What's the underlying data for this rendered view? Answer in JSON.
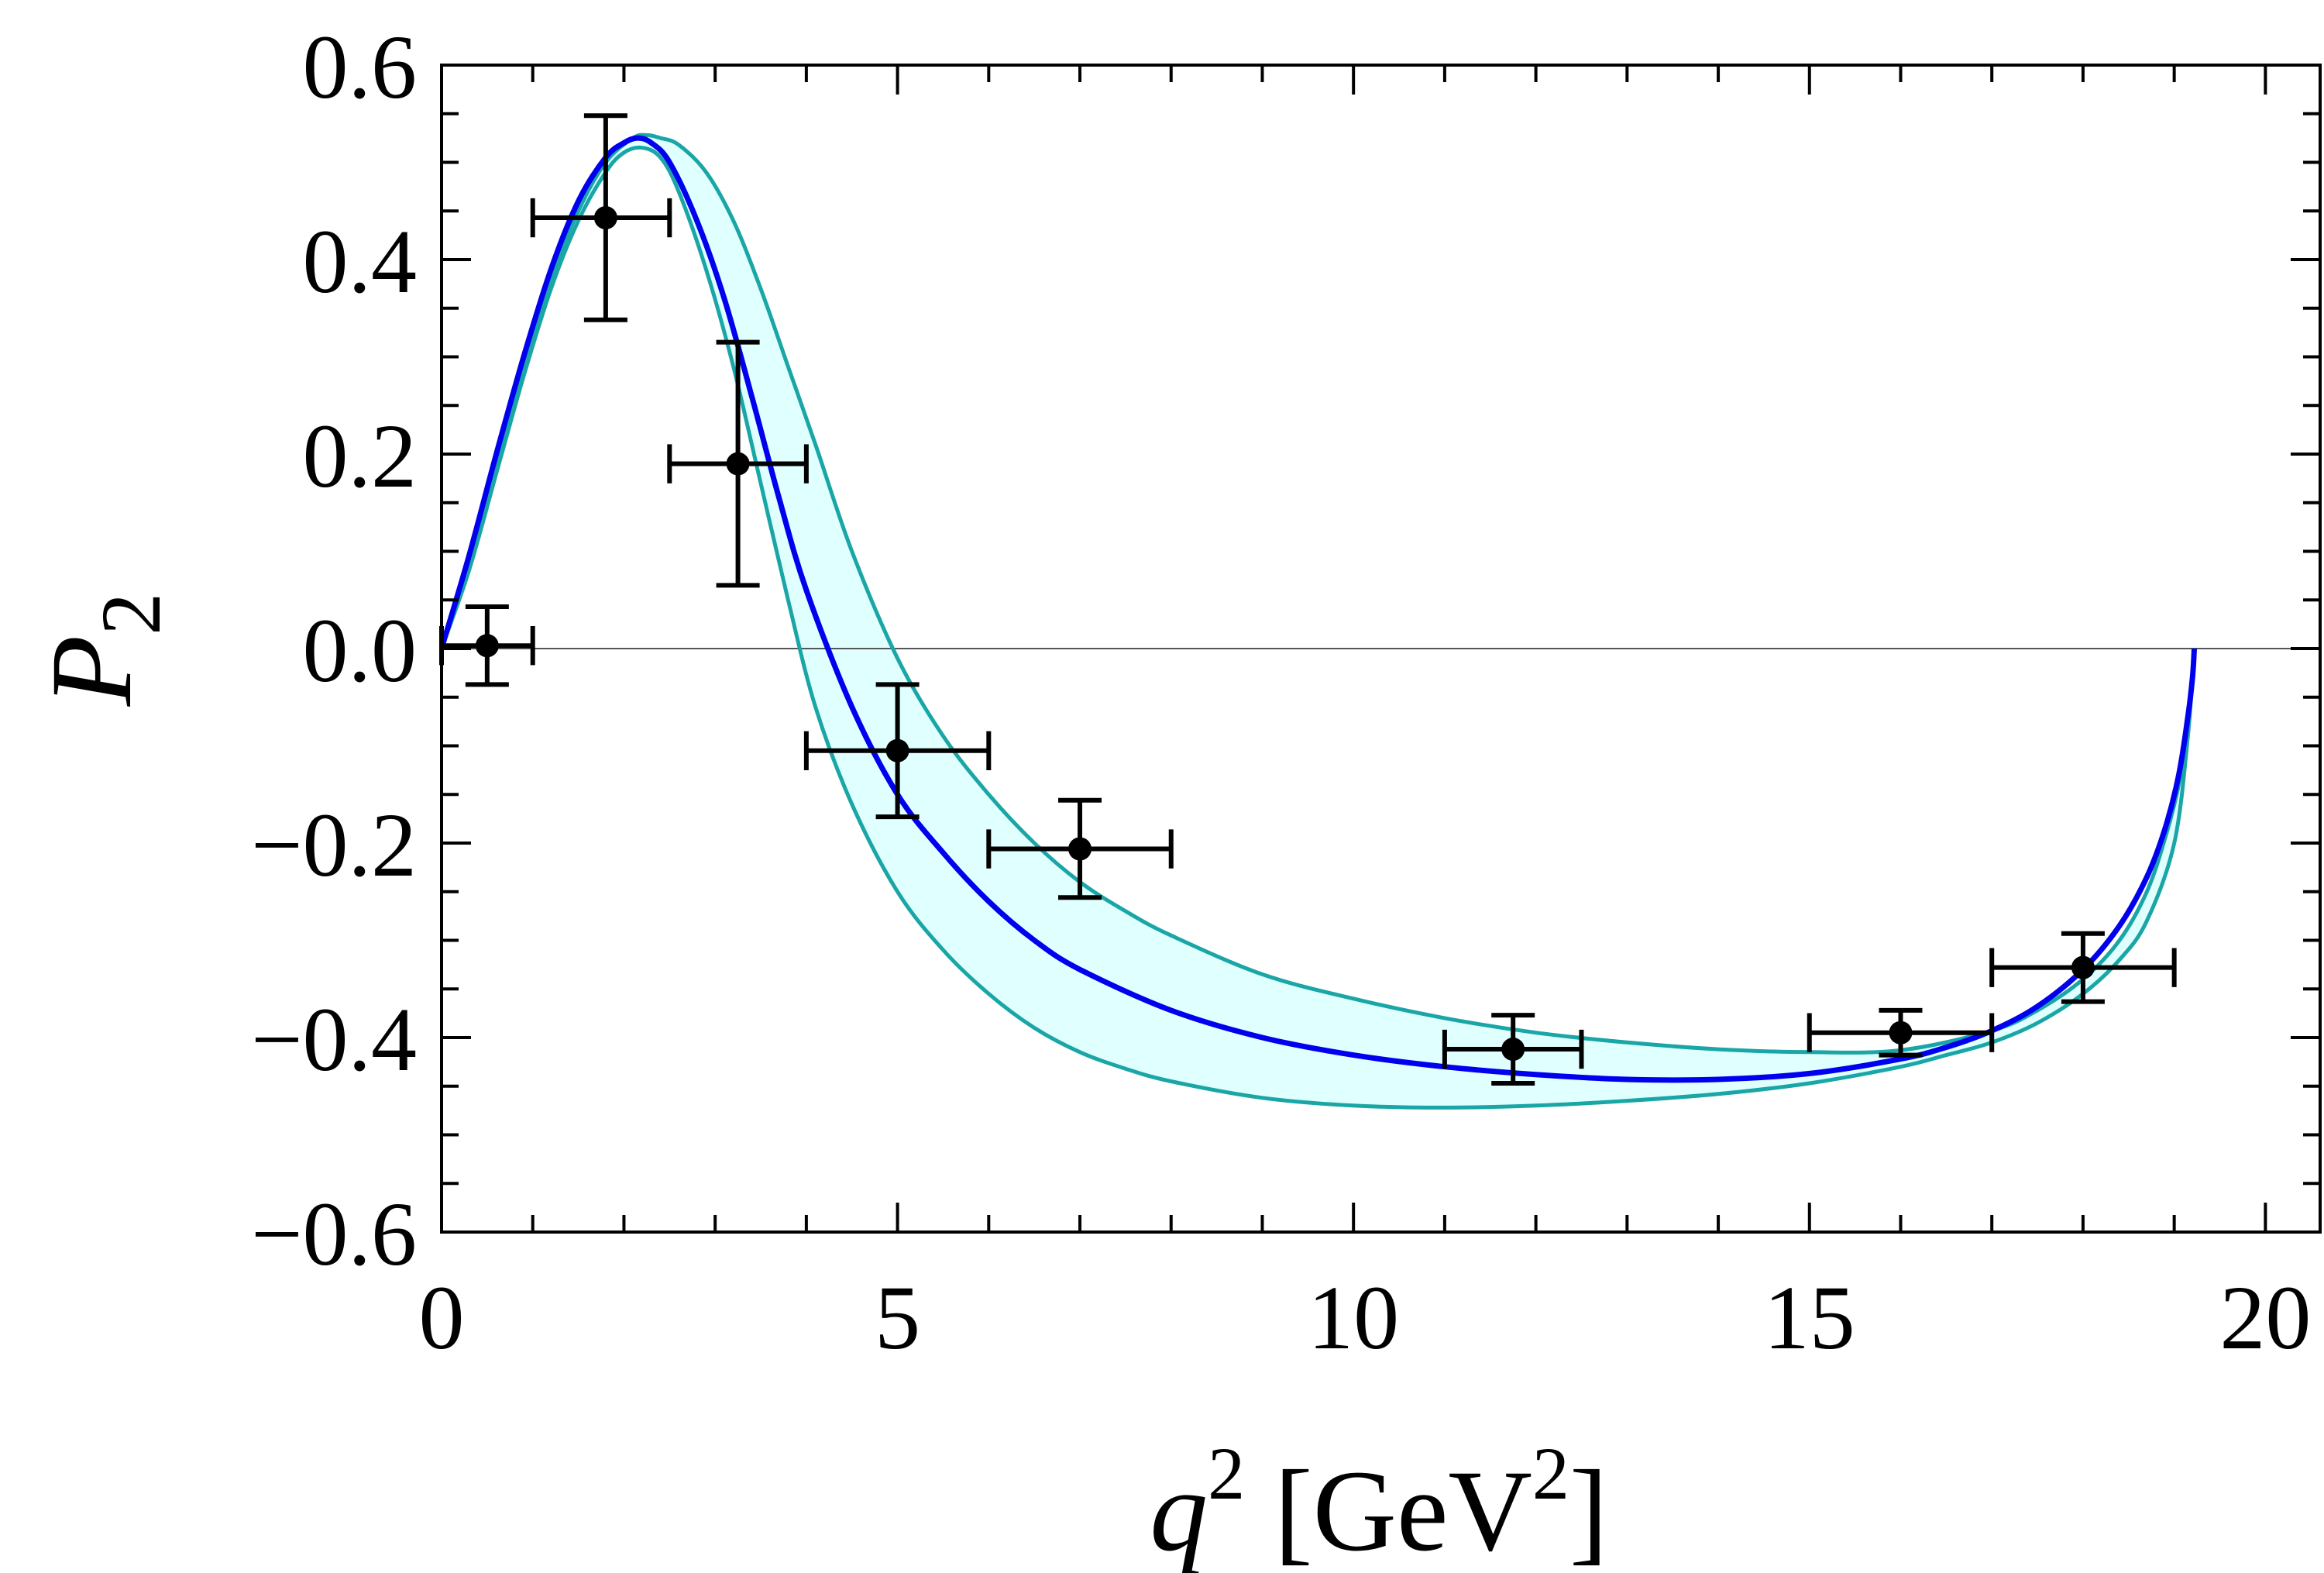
{
  "chart_data": {
    "type": "line",
    "title": "",
    "xlabel": {
      "main": "q",
      "sup": "2",
      "unit_open": " [GeV",
      "unit_sup": "2",
      "unit_close": "]"
    },
    "ylabel": {
      "main": "P",
      "sub": "2"
    },
    "xlim": [
      0,
      20.6
    ],
    "ylim": [
      -0.6,
      0.6
    ],
    "xticks": [
      0,
      5,
      10,
      15,
      20
    ],
    "xtick_labels": [
      "0",
      "5",
      "10",
      "15",
      "20"
    ],
    "yticks": [
      -0.6,
      -0.4,
      -0.2,
      0.0,
      0.2,
      0.4,
      0.6
    ],
    "ytick_labels": [
      "−0.6",
      "−0.4",
      "−0.2",
      "0.0",
      "0.2",
      "0.4",
      "0.6"
    ],
    "grid": false,
    "zero_line": true,
    "colors": {
      "central": "#0000ee",
      "band_edge": "#1aa6a6",
      "band_fill": "#e0ffff",
      "data": "#000000",
      "zero_line": "#555555"
    },
    "series": [
      {
        "name": "central",
        "x": [
          0.0,
          0.3,
          0.6,
          0.9,
          1.2,
          1.5,
          1.8,
          2.0,
          2.15,
          2.3,
          2.5,
          2.8,
          3.1,
          3.4,
          3.7,
          4.0,
          4.5,
          5.0,
          5.5,
          6.0,
          6.5,
          7.0,
          8.0,
          9.0,
          10.0,
          11.0,
          12.0,
          13.0,
          14.0,
          15.0,
          16.0,
          16.5,
          17.0,
          17.5,
          18.0,
          18.4,
          18.7,
          18.9,
          19.05,
          19.15,
          19.2,
          19.22
        ],
        "y": [
          0.0,
          0.095,
          0.2,
          0.3,
          0.39,
          0.46,
          0.505,
          0.52,
          0.525,
          0.52,
          0.5,
          0.44,
          0.36,
          0.26,
          0.155,
          0.06,
          -0.06,
          -0.15,
          -0.21,
          -0.26,
          -0.3,
          -0.33,
          -0.372,
          -0.4,
          -0.418,
          -0.43,
          -0.438,
          -0.443,
          -0.443,
          -0.437,
          -0.422,
          -0.41,
          -0.393,
          -0.368,
          -0.33,
          -0.285,
          -0.235,
          -0.185,
          -0.13,
          -0.07,
          -0.03,
          0.0
        ]
      },
      {
        "name": "band-upper",
        "x": [
          0.0,
          0.3,
          0.6,
          0.9,
          1.2,
          1.5,
          1.8,
          2.1,
          2.25,
          2.4,
          2.6,
          2.9,
          3.2,
          3.5,
          3.8,
          4.1,
          4.5,
          5.0,
          5.5,
          6.0,
          6.5,
          7.0,
          7.5,
          8.0,
          9.0,
          10.0,
          11.0,
          12.0,
          13.0,
          14.0,
          15.0,
          16.0,
          17.0,
          17.5,
          18.0,
          18.4,
          18.7,
          18.9,
          19.05,
          19.15,
          19.22
        ],
        "y": [
          0.0,
          0.09,
          0.19,
          0.29,
          0.38,
          0.45,
          0.5,
          0.525,
          0.528,
          0.525,
          0.518,
          0.49,
          0.44,
          0.37,
          0.29,
          0.21,
          0.1,
          -0.01,
          -0.09,
          -0.15,
          -0.2,
          -0.24,
          -0.27,
          -0.295,
          -0.335,
          -0.36,
          -0.38,
          -0.395,
          -0.405,
          -0.412,
          -0.415,
          -0.413,
          -0.393,
          -0.372,
          -0.34,
          -0.3,
          -0.25,
          -0.195,
          -0.14,
          -0.075,
          0.0
        ]
      },
      {
        "name": "band-lower",
        "x": [
          0.0,
          0.3,
          0.6,
          0.9,
          1.2,
          1.5,
          1.8,
          2.0,
          2.2,
          2.4,
          2.6,
          2.9,
          3.2,
          3.5,
          3.8,
          4.1,
          4.5,
          5.0,
          5.5,
          6.0,
          6.5,
          7.0,
          7.5,
          8.0,
          9.0,
          10.0,
          11.0,
          12.0,
          13.0,
          14.0,
          15.0,
          16.0,
          16.5,
          17.0,
          17.5,
          18.0,
          18.4,
          18.7,
          19.0,
          19.15,
          19.22
        ],
        "y": [
          0.0,
          0.08,
          0.18,
          0.28,
          0.37,
          0.44,
          0.49,
          0.51,
          0.515,
          0.505,
          0.47,
          0.39,
          0.29,
          0.17,
          0.05,
          -0.06,
          -0.16,
          -0.25,
          -0.31,
          -0.355,
          -0.39,
          -0.415,
          -0.432,
          -0.445,
          -0.462,
          -0.47,
          -0.472,
          -0.47,
          -0.465,
          -0.458,
          -0.447,
          -0.43,
          -0.418,
          -0.405,
          -0.385,
          -0.355,
          -0.32,
          -0.28,
          -0.2,
          -0.09,
          0.0
        ]
      }
    ],
    "data_points": [
      {
        "x": 0.5,
        "y": 0.003,
        "xerr": [
          0.5,
          0.5
        ],
        "yerr": [
          0.04,
          0.04
        ]
      },
      {
        "x": 1.8,
        "y": 0.443,
        "xerr": [
          0.8,
          0.7
        ],
        "yerr": [
          0.105,
          0.105
        ]
      },
      {
        "x": 3.25,
        "y": 0.19,
        "xerr": [
          0.75,
          0.75
        ],
        "yerr": [
          0.125,
          0.125
        ]
      },
      {
        "x": 5.0,
        "y": -0.105,
        "xerr": [
          1.0,
          1.0
        ],
        "yerr": [
          0.068,
          0.068
        ]
      },
      {
        "x": 7.0,
        "y": -0.206,
        "xerr": [
          1.0,
          1.0
        ],
        "yerr": [
          0.05,
          0.05
        ]
      },
      {
        "x": 11.75,
        "y": -0.412,
        "xerr": [
          0.75,
          0.75
        ],
        "yerr": [
          0.035,
          0.035
        ]
      },
      {
        "x": 16.0,
        "y": -0.395,
        "xerr": [
          1.0,
          1.0
        ],
        "yerr": [
          0.023,
          0.023
        ]
      },
      {
        "x": 18.0,
        "y": -0.328,
        "xerr": [
          1.0,
          1.0
        ],
        "yerr": [
          0.035,
          0.035
        ]
      }
    ]
  }
}
